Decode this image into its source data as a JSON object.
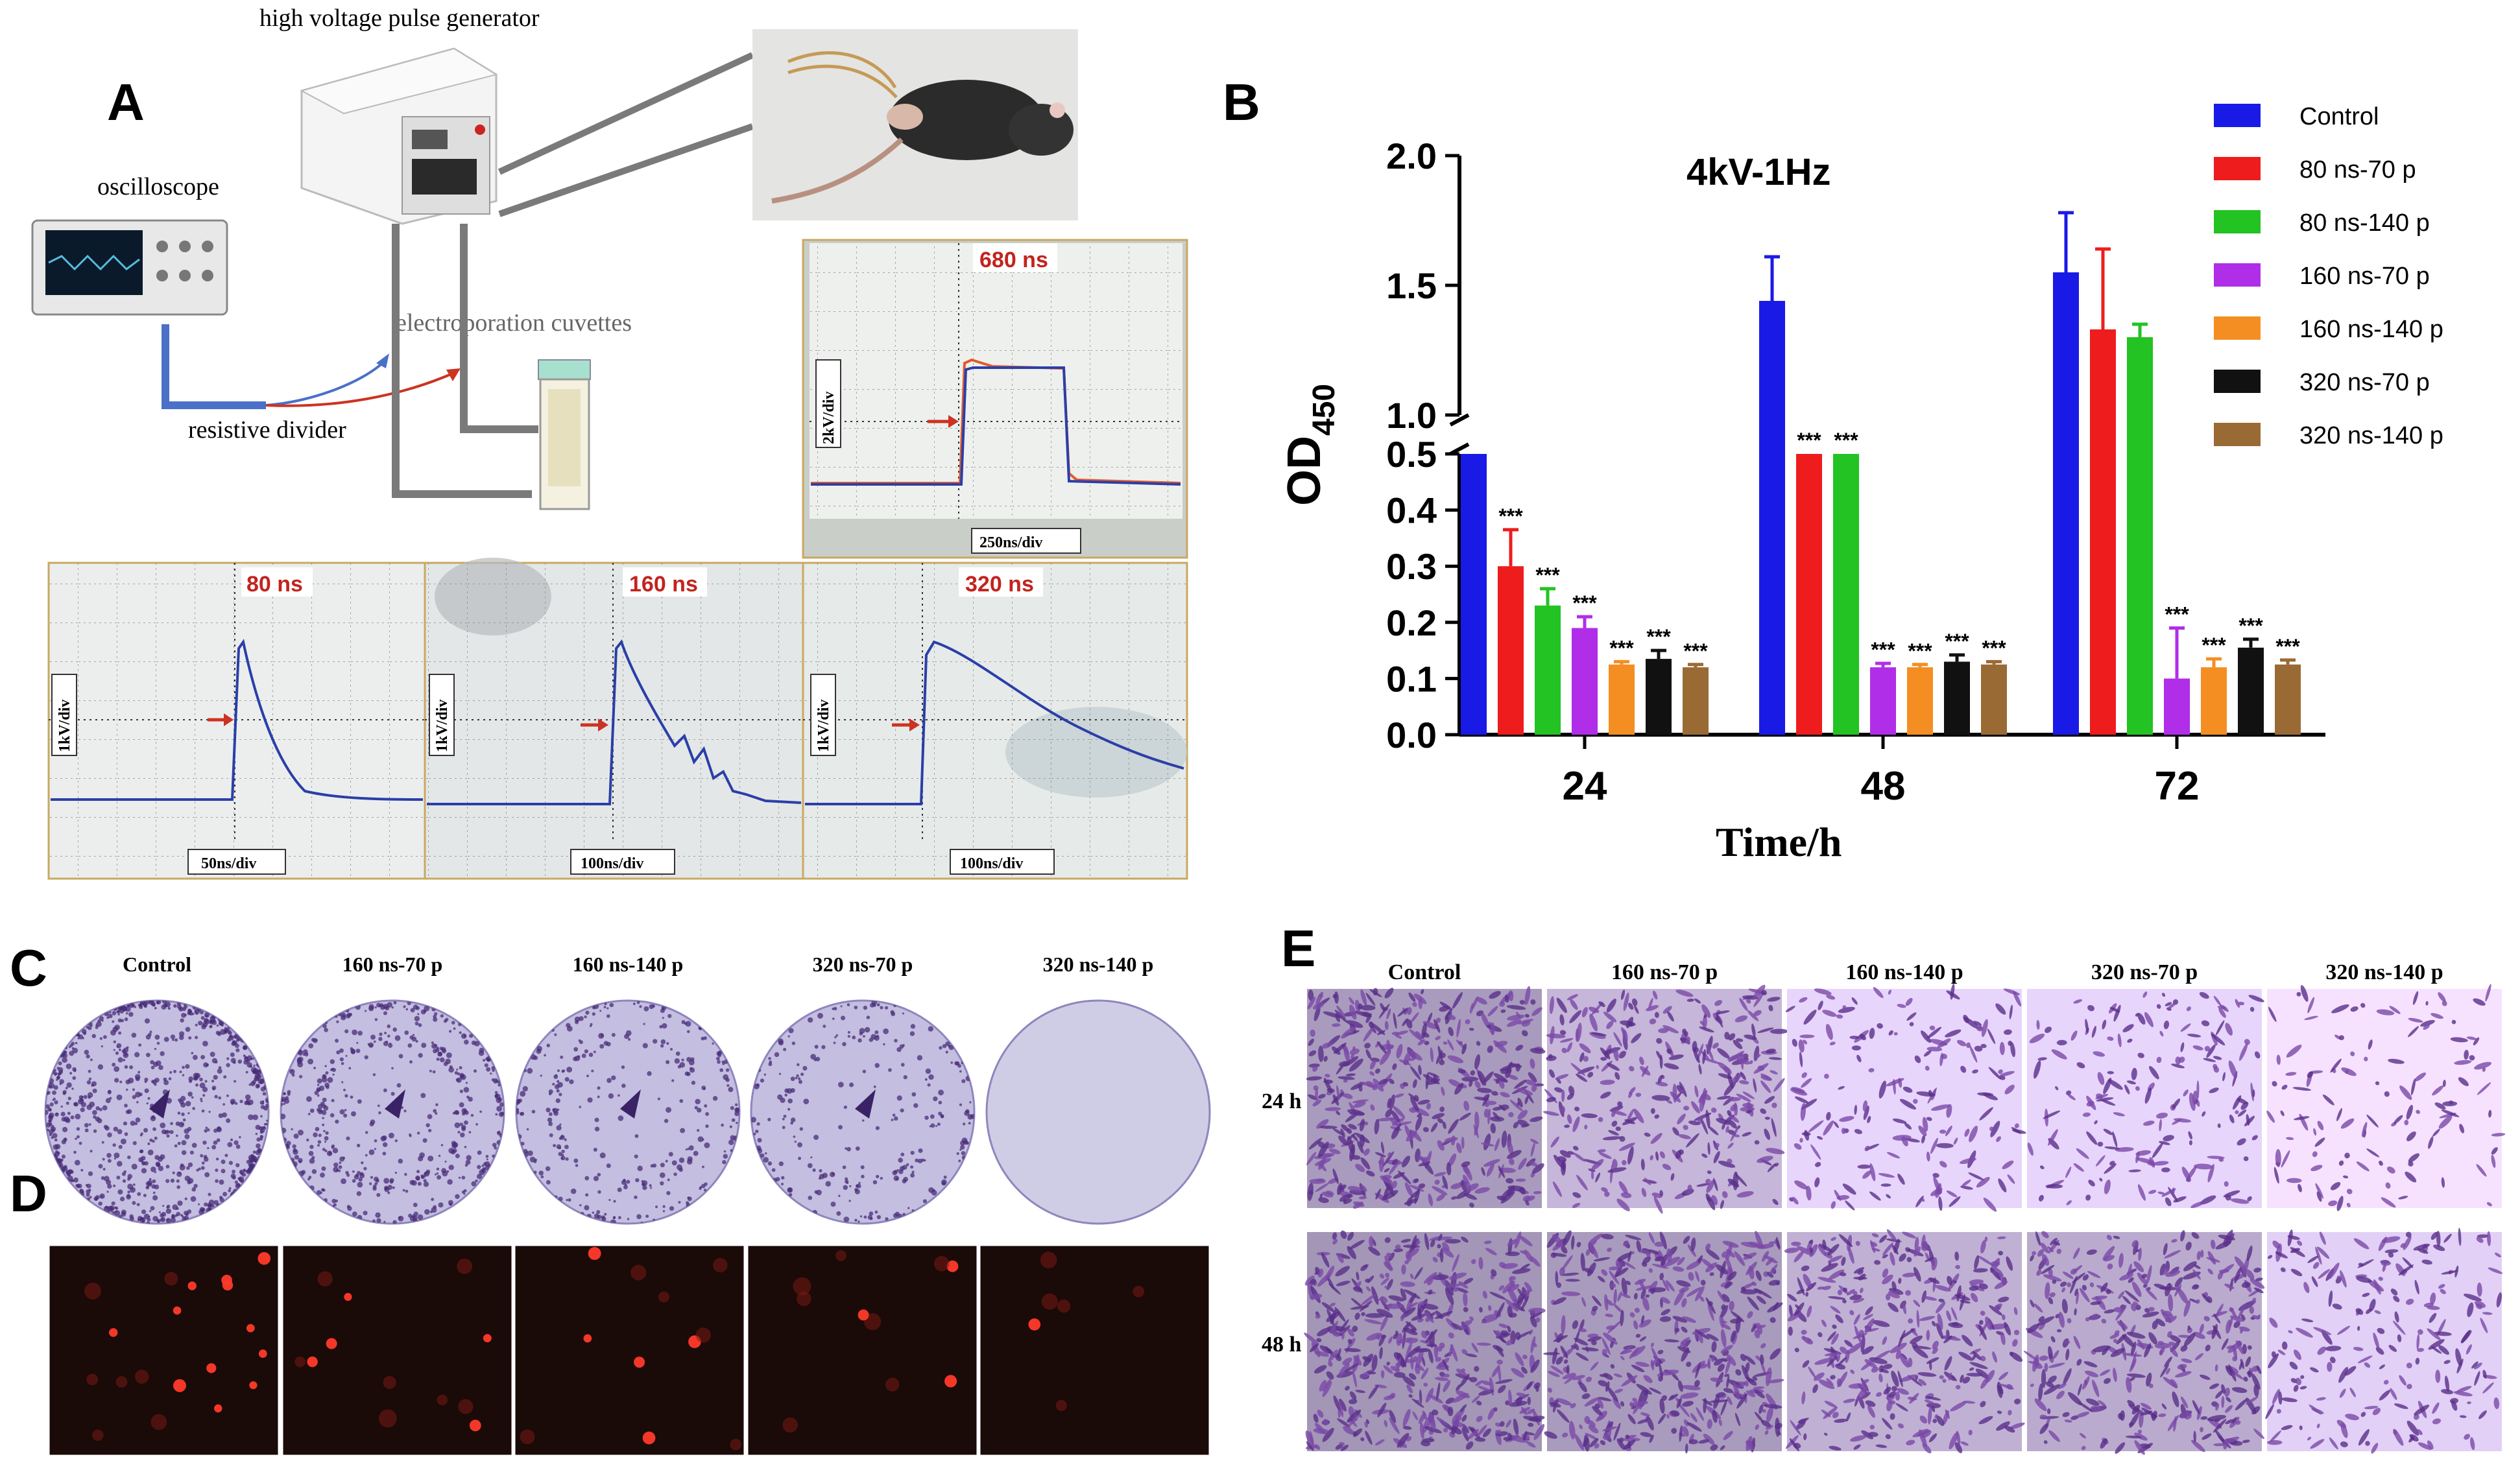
{
  "panel_a": {
    "letter": "A",
    "generator_label": "high voltage pulse generator",
    "oscilloscope_label": "oscilloscope",
    "divider_label": "resistive divider",
    "cuvette_label": "electroporation cuvettes",
    "traces": [
      {
        "pulse": "680 ns",
        "ydiv": "2kV/div",
        "xdiv": "250ns/div"
      },
      {
        "pulse": "80 ns",
        "ydiv": "1kV/div",
        "xdiv": "50ns/div"
      },
      {
        "pulse": "160 ns",
        "ydiv": "1kV/div",
        "xdiv": "100ns/div"
      },
      {
        "pulse": "320 ns",
        "ydiv": "1kV/div",
        "xdiv": "100ns/div"
      }
    ]
  },
  "chart_data": {
    "type": "bar",
    "panel_letter": "B",
    "title": "4kV-1Hz",
    "xlabel": "Time/h",
    "ylabel": "OD",
    "ylabel_sub": "450",
    "axis_break": [
      0.5,
      1.0
    ],
    "ylim_lower": [
      0.0,
      0.5
    ],
    "ylim_upper": [
      1.0,
      2.0
    ],
    "yticks_lower": [
      "0.0",
      "0.1",
      "0.2",
      "0.3",
      "0.4",
      "0.5"
    ],
    "yticks_upper": [
      "1.0",
      "1.5",
      "2.0"
    ],
    "categories": [
      "24",
      "48",
      "72"
    ],
    "significance_mark": "***",
    "series": [
      {
        "name": "Control",
        "color": "#1a1ae6",
        "values": [
          0.5,
          1.44,
          1.55
        ],
        "errors": [
          0,
          0.17,
          0.23
        ],
        "sig": [
          false,
          false,
          false
        ]
      },
      {
        "name": "80 ns-70 p",
        "color": "#ee1c1c",
        "values": [
          0.3,
          0.5,
          1.33
        ],
        "errors": [
          0.065,
          0,
          0.31
        ],
        "sig": [
          true,
          true,
          false
        ]
      },
      {
        "name": "80 ns-140 p",
        "color": "#22c322",
        "values": [
          0.23,
          0.5,
          1.3
        ],
        "errors": [
          0.03,
          0,
          0.05
        ],
        "sig": [
          true,
          true,
          false
        ]
      },
      {
        "name": "160 ns-70 p",
        "color": "#b02ee8",
        "values": [
          0.19,
          0.12,
          0.1
        ],
        "errors": [
          0.02,
          0.007,
          0.09
        ],
        "sig": [
          true,
          true,
          true
        ]
      },
      {
        "name": "160 ns-140 p",
        "color": "#f58e22",
        "values": [
          0.125,
          0.12,
          0.12
        ],
        "errors": [
          0.005,
          0.005,
          0.015
        ],
        "sig": [
          true,
          true,
          true
        ]
      },
      {
        "name": "320 ns-70 p",
        "color": "#111111",
        "values": [
          0.135,
          0.13,
          0.155
        ],
        "errors": [
          0.015,
          0.012,
          0.015
        ],
        "sig": [
          true,
          true,
          true
        ]
      },
      {
        "name": "320 ns-140 p",
        "color": "#9a6a35",
        "values": [
          0.12,
          0.125,
          0.125
        ],
        "errors": [
          0.005,
          0.005,
          0.008
        ],
        "sig": [
          true,
          true,
          true
        ]
      }
    ]
  },
  "panel_c": {
    "letter": "C",
    "columns": [
      "Control",
      "160 ns-70 p",
      "160 ns-140 p",
      "320 ns-70 p",
      "320 ns-140 p"
    ],
    "colony_density": [
      0.95,
      0.55,
      0.35,
      0.3,
      0.0
    ]
  },
  "panel_d": {
    "letter": "D",
    "spot_density": [
      0.85,
      0.55,
      0.5,
      0.45,
      0.25
    ]
  },
  "panel_e": {
    "letter": "E",
    "columns": [
      "Control",
      "160 ns-70 p",
      "160 ns-140 p",
      "320 ns-70 p",
      "320 ns-140 p"
    ],
    "rows": [
      "24 h",
      "48 h"
    ],
    "stain_density": [
      [
        0.75,
        0.5,
        0.2,
        0.2,
        0.08
      ],
      [
        0.8,
        0.75,
        0.55,
        0.6,
        0.25
      ]
    ]
  }
}
